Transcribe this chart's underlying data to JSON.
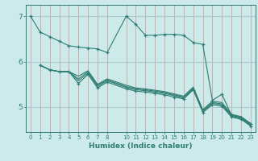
{
  "xlabel": "Humidex (Indice chaleur)",
  "bg_color": "#cceaea",
  "line_color": "#2e7d72",
  "vline_color": "#d4a0a0",
  "hline_color": "#aacccc",
  "xlim": [
    -0.5,
    23.5
  ],
  "ylim": [
    4.45,
    7.25
  ],
  "yticks": [
    5,
    6,
    7
  ],
  "xticks": [
    0,
    1,
    2,
    3,
    4,
    5,
    6,
    7,
    8,
    10,
    11,
    12,
    13,
    14,
    15,
    16,
    17,
    18,
    19,
    20,
    21,
    22,
    23
  ],
  "lines": [
    {
      "x": [
        0,
        1,
        2,
        3,
        4,
        5,
        6,
        7,
        8,
        10,
        11,
        12,
        13,
        14,
        15,
        16,
        17,
        18,
        19,
        20,
        21,
        22,
        23
      ],
      "y": [
        7.0,
        6.65,
        6.55,
        6.45,
        6.35,
        6.32,
        6.3,
        6.28,
        6.2,
        7.0,
        6.82,
        6.58,
        6.58,
        6.6,
        6.6,
        6.58,
        6.42,
        6.38,
        5.15,
        5.28,
        4.82,
        4.77,
        4.62
      ],
      "marker": true
    },
    {
      "x": [
        1,
        2,
        3,
        4,
        5,
        6,
        7,
        8,
        10,
        11,
        12,
        13,
        14,
        15,
        16,
        17,
        18,
        19,
        20,
        21,
        22,
        23
      ],
      "y": [
        5.92,
        5.82,
        5.78,
        5.78,
        5.52,
        5.72,
        5.42,
        5.55,
        5.4,
        5.35,
        5.33,
        5.3,
        5.27,
        5.22,
        5.18,
        5.38,
        4.88,
        5.05,
        5.02,
        4.78,
        4.73,
        4.58
      ],
      "marker": true
    },
    {
      "x": [
        1,
        2,
        3,
        4,
        5,
        6,
        7,
        8,
        10,
        11,
        12,
        13,
        14,
        15,
        16,
        17,
        18,
        19,
        20,
        21,
        22,
        23
      ],
      "y": [
        5.92,
        5.82,
        5.78,
        5.78,
        5.58,
        5.75,
        5.45,
        5.58,
        5.43,
        5.38,
        5.36,
        5.33,
        5.3,
        5.25,
        5.2,
        5.4,
        4.9,
        5.08,
        5.05,
        4.8,
        4.75,
        4.6
      ],
      "marker": false
    },
    {
      "x": [
        1,
        2,
        3,
        4,
        5,
        6,
        7,
        8,
        10,
        11,
        12,
        13,
        14,
        15,
        16,
        17,
        18,
        19,
        20,
        21,
        22,
        23
      ],
      "y": [
        5.92,
        5.82,
        5.78,
        5.78,
        5.62,
        5.78,
        5.48,
        5.6,
        5.45,
        5.4,
        5.38,
        5.35,
        5.32,
        5.27,
        5.22,
        5.42,
        4.92,
        5.1,
        5.07,
        4.82,
        4.77,
        4.62
      ],
      "marker": false
    },
    {
      "x": [
        1,
        2,
        3,
        4,
        5,
        6,
        7,
        8,
        10,
        11,
        12,
        13,
        14,
        15,
        16,
        17,
        18,
        19,
        20,
        21,
        22,
        23
      ],
      "y": [
        5.92,
        5.82,
        5.78,
        5.78,
        5.68,
        5.8,
        5.5,
        5.62,
        5.48,
        5.42,
        5.4,
        5.37,
        5.34,
        5.29,
        5.24,
        5.44,
        4.94,
        5.13,
        5.1,
        4.84,
        4.79,
        4.64
      ],
      "marker": false
    }
  ]
}
